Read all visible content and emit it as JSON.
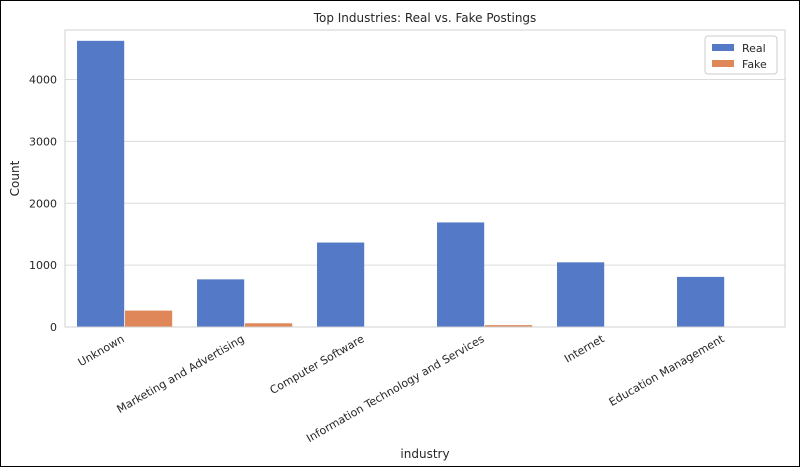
{
  "chart_data": {
    "type": "bar",
    "title": "Top Industries: Real vs. Fake Postings",
    "xlabel": "industry",
    "ylabel": "Count",
    "ylim": [
      0,
      4800
    ],
    "yticks": [
      0,
      1000,
      2000,
      3000,
      4000
    ],
    "grid": true,
    "legend_position": "top-right",
    "categories": [
      "Unknown",
      "Marketing and Advertising",
      "Computer Software",
      "Information Technology and Services",
      "Internet",
      "Education Management"
    ],
    "series": [
      {
        "name": "Real",
        "color": "#5479c6",
        "values": [
          4625,
          770,
          1365,
          1690,
          1045,
          810
        ]
      },
      {
        "name": "Fake",
        "color": "#e0875a",
        "values": [
          265,
          60,
          5,
          30,
          5,
          5
        ]
      }
    ]
  }
}
